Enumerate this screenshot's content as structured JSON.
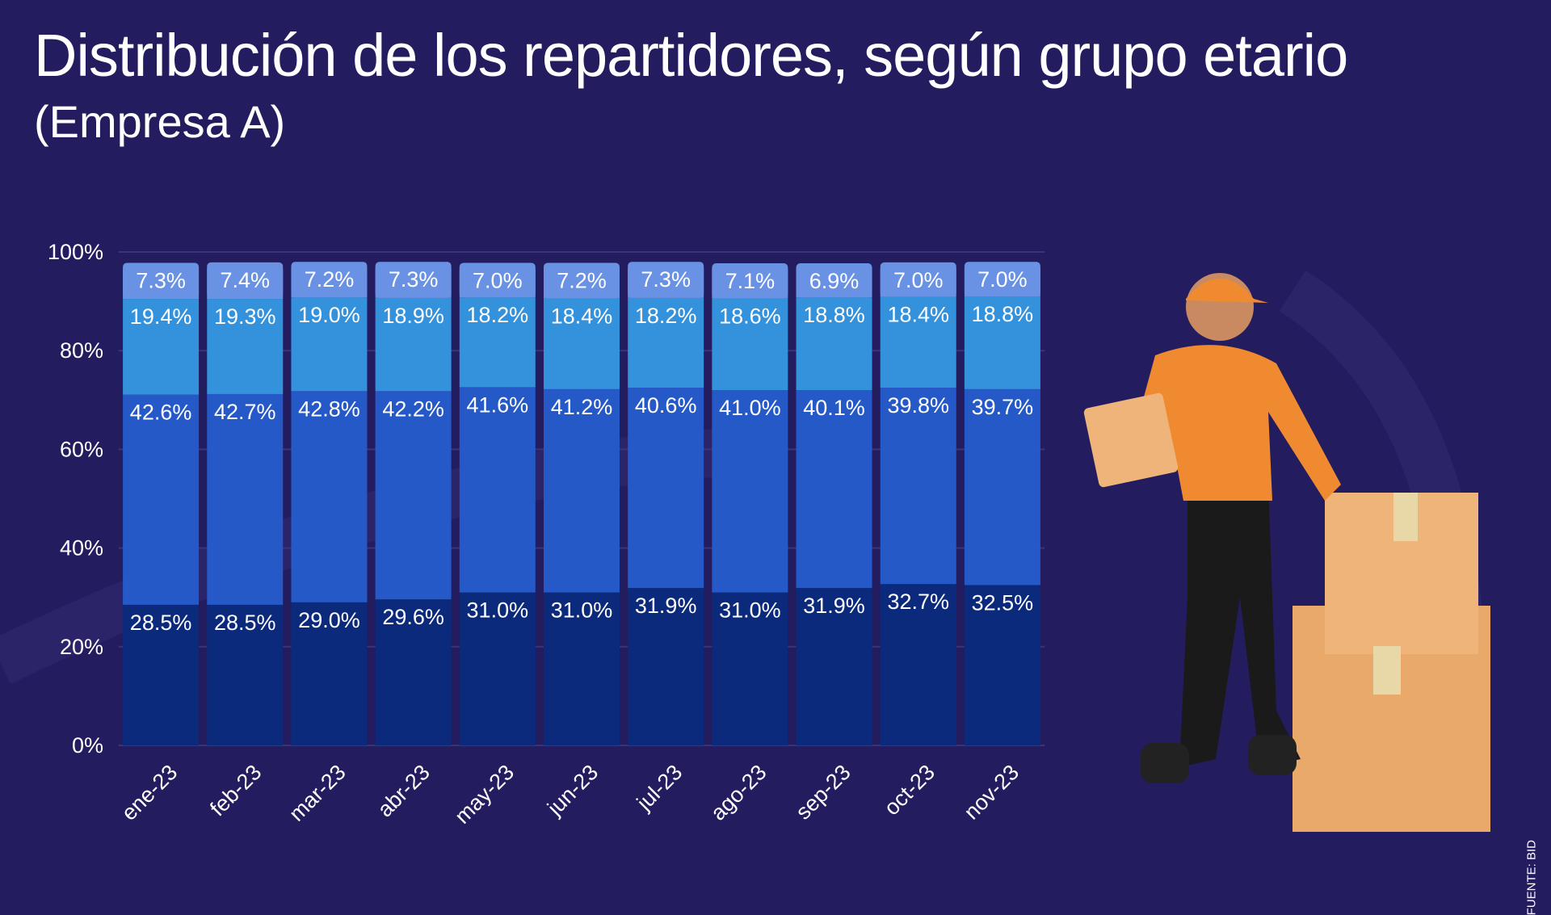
{
  "title": "Distribución de los repartidores, según grupo etario",
  "subtitle": "(Empresa A)",
  "source": "FUENTE: BID",
  "colors": {
    "background": "#231c5e",
    "seg1": "#0b2a7c",
    "seg2": "#2659c8",
    "seg3": "#3492dc",
    "seg4": "#6a92e4",
    "grid": "#3b3478"
  },
  "chart_data": {
    "type": "bar",
    "stacked": true,
    "categories": [
      "ene-23",
      "feb-23",
      "mar-23",
      "abr-23",
      "may-23",
      "jun-23",
      "jul-23",
      "ago-23",
      "sep-23",
      "oct-23",
      "nov-23"
    ],
    "series": [
      {
        "values": [
          28.5,
          28.5,
          29.0,
          29.6,
          31.0,
          31.0,
          31.9,
          31.0,
          31.9,
          32.7,
          32.5
        ]
      },
      {
        "values": [
          42.6,
          42.7,
          42.8,
          42.2,
          41.6,
          41.2,
          40.6,
          41.0,
          40.1,
          39.8,
          39.7
        ]
      },
      {
        "values": [
          19.4,
          19.3,
          19.0,
          18.9,
          18.2,
          18.4,
          18.2,
          18.6,
          18.8,
          18.4,
          18.8
        ]
      },
      {
        "values": [
          7.3,
          7.4,
          7.2,
          7.3,
          7.0,
          7.2,
          7.3,
          7.1,
          6.9,
          7.0,
          7.0
        ]
      }
    ],
    "yticks": [
      "0%",
      "20%",
      "40%",
      "60%",
      "80%",
      "100%"
    ],
    "ylim": [
      0,
      100
    ],
    "grid": true,
    "legend": "none"
  }
}
